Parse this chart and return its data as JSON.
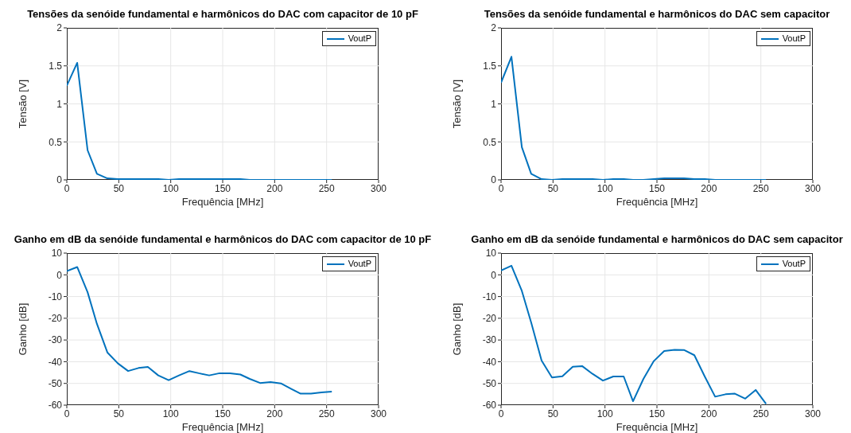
{
  "chart_data": [
    {
      "type": "line",
      "title": "Tensões da senóide fundamental e harmônicos do DAC com capacitor de 10 pF",
      "xlabel": "Frequência [MHz]",
      "ylabel": "Tensão [V]",
      "x": [
        0,
        10,
        20,
        29,
        39,
        49,
        59,
        69,
        78,
        88,
        98,
        108,
        118,
        127,
        137,
        147,
        157,
        167,
        176,
        186,
        196,
        206,
        216,
        225,
        235,
        245,
        255
      ],
      "series": [
        {
          "name": "VoutP",
          "color": "#0072bd",
          "values": [
            1.24,
            1.54,
            0.39,
            0.08,
            0.02,
            0.01,
            0.01,
            0.01,
            0.01,
            0.01,
            0,
            0.01,
            0.01,
            0.01,
            0.01,
            0.01,
            0.01,
            0.01,
            0,
            0,
            0,
            0,
            0,
            0,
            0,
            0,
            0
          ]
        }
      ],
      "xlim": [
        0,
        300
      ],
      "xticks": [
        0,
        50,
        100,
        150,
        200,
        250,
        300
      ],
      "ylim": [
        0,
        2
      ],
      "yticks": [
        0,
        0.5,
        1,
        1.5,
        2
      ],
      "grid": true,
      "legend": "top right"
    },
    {
      "type": "line",
      "title": "Tensões da senóide fundamental e harmônicos do DAC sem capacitor",
      "xlabel": "Frequência [MHz]",
      "ylabel": "Tensão [V]",
      "x": [
        0,
        10,
        20,
        29,
        39,
        49,
        59,
        69,
        78,
        88,
        98,
        108,
        118,
        127,
        137,
        147,
        157,
        167,
        176,
        186,
        196,
        206,
        216,
        225,
        235,
        245,
        255
      ],
      "series": [
        {
          "name": "VoutP",
          "color": "#0072bd",
          "values": [
            1.28,
            1.62,
            0.43,
            0.08,
            0.01,
            0,
            0.01,
            0.01,
            0.01,
            0.01,
            0,
            0.01,
            0.01,
            0,
            0,
            0.01,
            0.02,
            0.02,
            0.02,
            0.01,
            0.01,
            0,
            0,
            0,
            0,
            0,
            0
          ]
        }
      ],
      "xlim": [
        0,
        300
      ],
      "xticks": [
        0,
        50,
        100,
        150,
        200,
        250,
        300
      ],
      "ylim": [
        0,
        2
      ],
      "yticks": [
        0,
        0.5,
        1,
        1.5,
        2
      ],
      "grid": true,
      "legend": "top right"
    },
    {
      "type": "line",
      "title": "Ganho em dB da senóide fundamental e harmônicos do DAC com capacitor de 10 pF",
      "xlabel": "Frequência [MHz]",
      "ylabel": "Ganho [dB]",
      "x": [
        0,
        10,
        20,
        29,
        39,
        49,
        59,
        69,
        78,
        88,
        98,
        108,
        118,
        127,
        137,
        147,
        157,
        167,
        176,
        186,
        196,
        206,
        216,
        225,
        235,
        245,
        255
      ],
      "series": [
        {
          "name": "VoutP",
          "color": "#0072bd",
          "values": [
            1.7,
            3.6,
            -8.0,
            -22.6,
            -35.7,
            -40.7,
            -44.3,
            -42.9,
            -42.4,
            -46.3,
            -48.5,
            -46.3,
            -44.3,
            -45.3,
            -46.3,
            -45.3,
            -45.3,
            -45.9,
            -47.9,
            -49.8,
            -49.4,
            -50.0,
            -52.5,
            -54.7,
            -54.7,
            -54.1,
            -53.8
          ]
        }
      ],
      "xlim": [
        0,
        300
      ],
      "xticks": [
        0,
        50,
        100,
        150,
        200,
        250,
        300
      ],
      "ylim": [
        -60,
        10
      ],
      "yticks": [
        -60,
        -50,
        -40,
        -30,
        -20,
        -10,
        0,
        10
      ],
      "grid": true,
      "legend": "top right"
    },
    {
      "type": "line",
      "title": "Ganho em dB da senóide fundamental e harmônicos do DAC sem capacitor",
      "xlabel": "Frequência [MHz]",
      "ylabel": "Ganho [dB]",
      "x": [
        0,
        10,
        20,
        29,
        39,
        49,
        59,
        69,
        78,
        88,
        98,
        108,
        118,
        127,
        137,
        147,
        157,
        167,
        176,
        186,
        196,
        206,
        216,
        225,
        235,
        245,
        255
      ],
      "series": [
        {
          "name": "VoutP",
          "color": "#0072bd",
          "values": [
            2.0,
            4.2,
            -7.4,
            -22.0,
            -39.5,
            -47.3,
            -46.7,
            -42.3,
            -42.0,
            -45.6,
            -48.7,
            -46.8,
            -46.8,
            -58.2,
            -47.9,
            -39.7,
            -35.1,
            -34.5,
            -34.6,
            -37.0,
            -46.8,
            -56.1,
            -55.0,
            -54.7,
            -57.0,
            -53.0,
            -59.4
          ]
        }
      ],
      "xlim": [
        0,
        300
      ],
      "xticks": [
        0,
        50,
        100,
        150,
        200,
        250,
        300
      ],
      "ylim": [
        -60,
        10
      ],
      "yticks": [
        -60,
        -50,
        -40,
        -30,
        -20,
        -10,
        0,
        10
      ],
      "grid": true,
      "legend": "top right"
    }
  ]
}
